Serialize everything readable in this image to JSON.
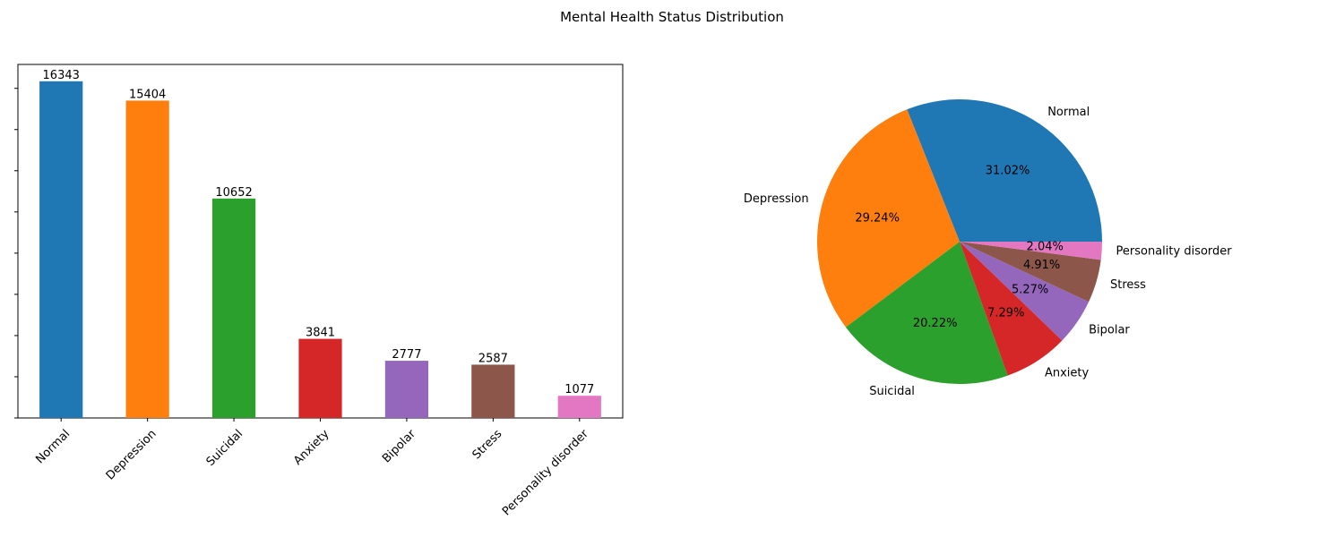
{
  "title": "Mental Health Status Distribution",
  "chart_data": [
    {
      "type": "bar",
      "categories": [
        "Normal",
        "Depression",
        "Suicidal",
        "Anxiety",
        "Bipolar",
        "Stress",
        "Personality disorder"
      ],
      "values": [
        16343,
        15404,
        10652,
        3841,
        2777,
        2587,
        1077
      ],
      "colors": [
        "#1f77b4",
        "#ff7f0e",
        "#2ca02c",
        "#d62728",
        "#9467bd",
        "#8c564b",
        "#e377c2"
      ],
      "ylim": [
        0,
        17160
      ],
      "ytick_labels_visible": false,
      "grid": false
    },
    {
      "type": "pie",
      "labels": [
        "Normal",
        "Depression",
        "Suicidal",
        "Anxiety",
        "Bipolar",
        "Stress",
        "Personality disorder"
      ],
      "values": [
        31.02,
        29.24,
        20.22,
        7.29,
        5.27,
        4.91,
        2.04
      ],
      "pct_labels": [
        "31.02%",
        "29.24%",
        "20.22%",
        "7.29%",
        "5.27%",
        "4.91%",
        "2.04%"
      ],
      "colors": [
        "#1f77b4",
        "#ff7f0e",
        "#2ca02c",
        "#d62728",
        "#9467bd",
        "#8c564b",
        "#e377c2"
      ]
    }
  ]
}
